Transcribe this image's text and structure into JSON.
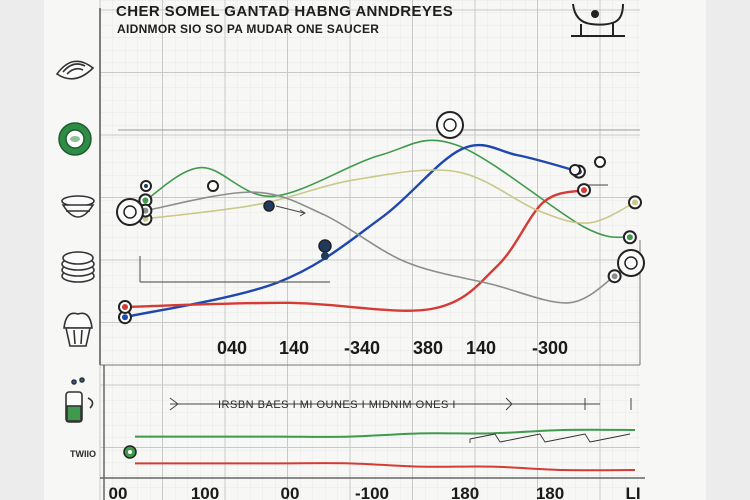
{
  "title": "CHER SOMEL GANTAD HABNG  ANNDREYES",
  "subtitle": "AIDNMOR SIO SO PA MUDAR ONE SAUCER",
  "colors": {
    "green": "#3f9a4c",
    "blue": "#1f47b0",
    "red": "#d63a34",
    "yellow": "#c8c98a",
    "gray": "#8a8f8e"
  },
  "side_icons": [
    "seashell-icon",
    "plate-icon",
    "bowl-icon",
    "stacked-plates-icon",
    "cupcake-icon",
    "jar-icon"
  ],
  "corner_icon": "cow-icon",
  "chart_data": {
    "type": "line",
    "title": "CHER SOMEL GANTAD HABNG  ANNDREYES",
    "subtitle": "AIDNMOR SIO SO PA MUDAR ONE SAUCER",
    "upper_value_labels": [
      "040",
      "140",
      "-340",
      "380",
      "140",
      "-300"
    ],
    "x_tick_labels": [
      "00",
      "100",
      "00",
      "-100",
      "180",
      "180",
      "LI"
    ],
    "strip_label": "IRSBN BAES I MI OUNES I  MIDNIM ONES I",
    "y_axis_label": "TWIIO",
    "grid": true,
    "upper_panel": {
      "x_range": [
        0,
        100
      ],
      "y_range": [
        0,
        100
      ],
      "series": [
        {
          "color_key": "green",
          "points": [
            [
              4,
              73
            ],
            [
              15,
              89
            ],
            [
              29,
              75
            ],
            [
              50,
              95
            ],
            [
              65,
              100
            ],
            [
              90,
              60
            ],
            [
              99,
              55
            ]
          ]
        },
        {
          "color_key": "blue",
          "points": [
            [
              0,
              16
            ],
            [
              30,
              33
            ],
            [
              50,
              64
            ],
            [
              66,
              98
            ],
            [
              77,
              95
            ],
            [
              89,
              87
            ]
          ]
        },
        {
          "color_key": "red",
          "points": [
            [
              0,
              21
            ],
            [
              32,
              23
            ],
            [
              60,
              20
            ],
            [
              73,
              41
            ],
            [
              82,
              72
            ],
            [
              90,
              78
            ]
          ]
        },
        {
          "color_key": "yellow",
          "points": [
            [
              4,
              64
            ],
            [
              26,
              71
            ],
            [
              45,
              83
            ],
            [
              65,
              87
            ],
            [
              81,
              68
            ],
            [
              91,
              62
            ],
            [
              100,
              72
            ]
          ]
        },
        {
          "color_key": "gray",
          "points": [
            [
              4,
              68
            ],
            [
              25,
              77
            ],
            [
              39,
              66
            ],
            [
              55,
              43
            ],
            [
              72,
              32
            ],
            [
              87,
              23
            ],
            [
              96,
              36
            ]
          ]
        }
      ]
    },
    "lower_panel": {
      "x_range": [
        0,
        100
      ],
      "series": [
        {
          "color_key": "green",
          "values": [
            10,
            10,
            10,
            10,
            11,
            11,
            12,
            12
          ]
        },
        {
          "color_key": "red",
          "values": [
            2,
            2,
            2,
            2,
            1,
            1,
            0,
            0
          ]
        }
      ]
    }
  }
}
